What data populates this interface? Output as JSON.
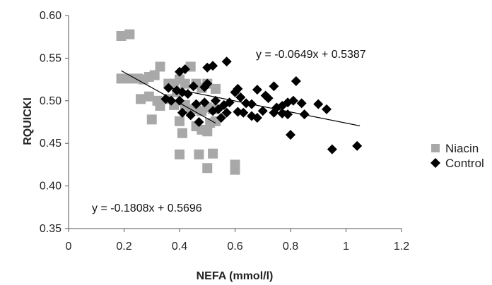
{
  "chart_data": {
    "type": "scatter",
    "title": "",
    "xlabel": "NEFA (mmol/l)",
    "ylabel": "RQUICKI",
    "xlim": [
      0,
      1.2
    ],
    "ylim": [
      0.35,
      0.6
    ],
    "xticks": [
      0,
      0.2,
      0.4,
      0.6,
      0.8,
      1,
      1.2
    ],
    "xtick_labels": [
      "0",
      "0.2",
      "0.4",
      "0.6",
      "0.8",
      "1",
      "1.2"
    ],
    "yticks": [
      0.35,
      0.4,
      0.45,
      0.5,
      0.55,
      0.6
    ],
    "ytick_labels": [
      "0.35",
      "0.40",
      "0.45",
      "0.50",
      "0.55",
      "0.60"
    ],
    "grid": false,
    "legend_position": "right",
    "series": [
      {
        "name": "Niacin",
        "marker": "square",
        "color": "#a8a8a8",
        "trendline": {
          "slope": -0.1808,
          "intercept": 0.5696,
          "x_range": [
            0.19,
            0.53
          ],
          "label": "y = -0.1808x + 0.5696"
        },
        "points": [
          [
            0.19,
            0.576
          ],
          [
            0.22,
            0.578
          ],
          [
            0.19,
            0.526
          ],
          [
            0.22,
            0.526
          ],
          [
            0.25,
            0.526
          ],
          [
            0.27,
            0.525
          ],
          [
            0.29,
            0.528
          ],
          [
            0.31,
            0.53
          ],
          [
            0.33,
            0.54
          ],
          [
            0.36,
            0.52
          ],
          [
            0.38,
            0.52
          ],
          [
            0.4,
            0.525
          ],
          [
            0.42,
            0.52
          ],
          [
            0.44,
            0.54
          ],
          [
            0.46,
            0.52
          ],
          [
            0.48,
            0.515
          ],
          [
            0.5,
            0.52
          ],
          [
            0.53,
            0.514
          ],
          [
            0.26,
            0.502
          ],
          [
            0.29,
            0.505
          ],
          [
            0.32,
            0.5
          ],
          [
            0.33,
            0.494
          ],
          [
            0.36,
            0.502
          ],
          [
            0.38,
            0.495
          ],
          [
            0.39,
            0.51
          ],
          [
            0.42,
            0.495
          ],
          [
            0.44,
            0.49
          ],
          [
            0.46,
            0.49
          ],
          [
            0.48,
            0.488
          ],
          [
            0.5,
            0.492
          ],
          [
            0.52,
            0.49
          ],
          [
            0.3,
            0.478
          ],
          [
            0.4,
            0.476
          ],
          [
            0.46,
            0.47
          ],
          [
            0.48,
            0.466
          ],
          [
            0.5,
            0.464
          ],
          [
            0.51,
            0.474
          ],
          [
            0.53,
            0.476
          ],
          [
            0.41,
            0.462
          ],
          [
            0.4,
            0.437
          ],
          [
            0.47,
            0.437
          ],
          [
            0.52,
            0.438
          ],
          [
            0.5,
            0.421
          ],
          [
            0.6,
            0.425
          ],
          [
            0.6,
            0.419
          ]
        ]
      },
      {
        "name": "Control",
        "marker": "diamond",
        "color": "#000000",
        "trendline": {
          "slope": -0.0649,
          "intercept": 0.5387,
          "x_range": [
            0.36,
            1.05
          ],
          "label": "y = -0.0649x + 0.5387"
        },
        "points": [
          [
            0.4,
            0.534
          ],
          [
            0.42,
            0.537
          ],
          [
            0.5,
            0.539
          ],
          [
            0.52,
            0.541
          ],
          [
            0.57,
            0.546
          ],
          [
            0.36,
            0.515
          ],
          [
            0.39,
            0.512
          ],
          [
            0.41,
            0.51
          ],
          [
            0.43,
            0.508
          ],
          [
            0.45,
            0.517
          ],
          [
            0.49,
            0.516
          ],
          [
            0.5,
            0.52
          ],
          [
            0.53,
            0.5
          ],
          [
            0.35,
            0.502
          ],
          [
            0.37,
            0.5
          ],
          [
            0.4,
            0.5
          ],
          [
            0.46,
            0.496
          ],
          [
            0.49,
            0.498
          ],
          [
            0.52,
            0.488
          ],
          [
            0.54,
            0.49
          ],
          [
            0.56,
            0.495
          ],
          [
            0.58,
            0.498
          ],
          [
            0.6,
            0.51
          ],
          [
            0.61,
            0.514
          ],
          [
            0.62,
            0.504
          ],
          [
            0.64,
            0.497
          ],
          [
            0.66,
            0.496
          ],
          [
            0.68,
            0.513
          ],
          [
            0.71,
            0.506
          ],
          [
            0.72,
            0.503
          ],
          [
            0.74,
            0.517
          ],
          [
            0.75,
            0.492
          ],
          [
            0.77,
            0.494
          ],
          [
            0.79,
            0.498
          ],
          [
            0.81,
            0.5
          ],
          [
            0.82,
            0.523
          ],
          [
            0.84,
            0.497
          ],
          [
            0.9,
            0.496
          ],
          [
            0.93,
            0.49
          ],
          [
            0.41,
            0.486
          ],
          [
            0.44,
            0.483
          ],
          [
            0.47,
            0.475
          ],
          [
            0.55,
            0.48
          ],
          [
            0.57,
            0.486
          ],
          [
            0.61,
            0.487
          ],
          [
            0.63,
            0.486
          ],
          [
            0.66,
            0.482
          ],
          [
            0.68,
            0.48
          ],
          [
            0.7,
            0.488
          ],
          [
            0.74,
            0.486
          ],
          [
            0.77,
            0.485
          ],
          [
            0.79,
            0.484
          ],
          [
            0.85,
            0.484
          ],
          [
            0.8,
            0.46
          ],
          [
            0.95,
            0.443
          ],
          [
            1.04,
            0.447
          ]
        ]
      }
    ]
  }
}
